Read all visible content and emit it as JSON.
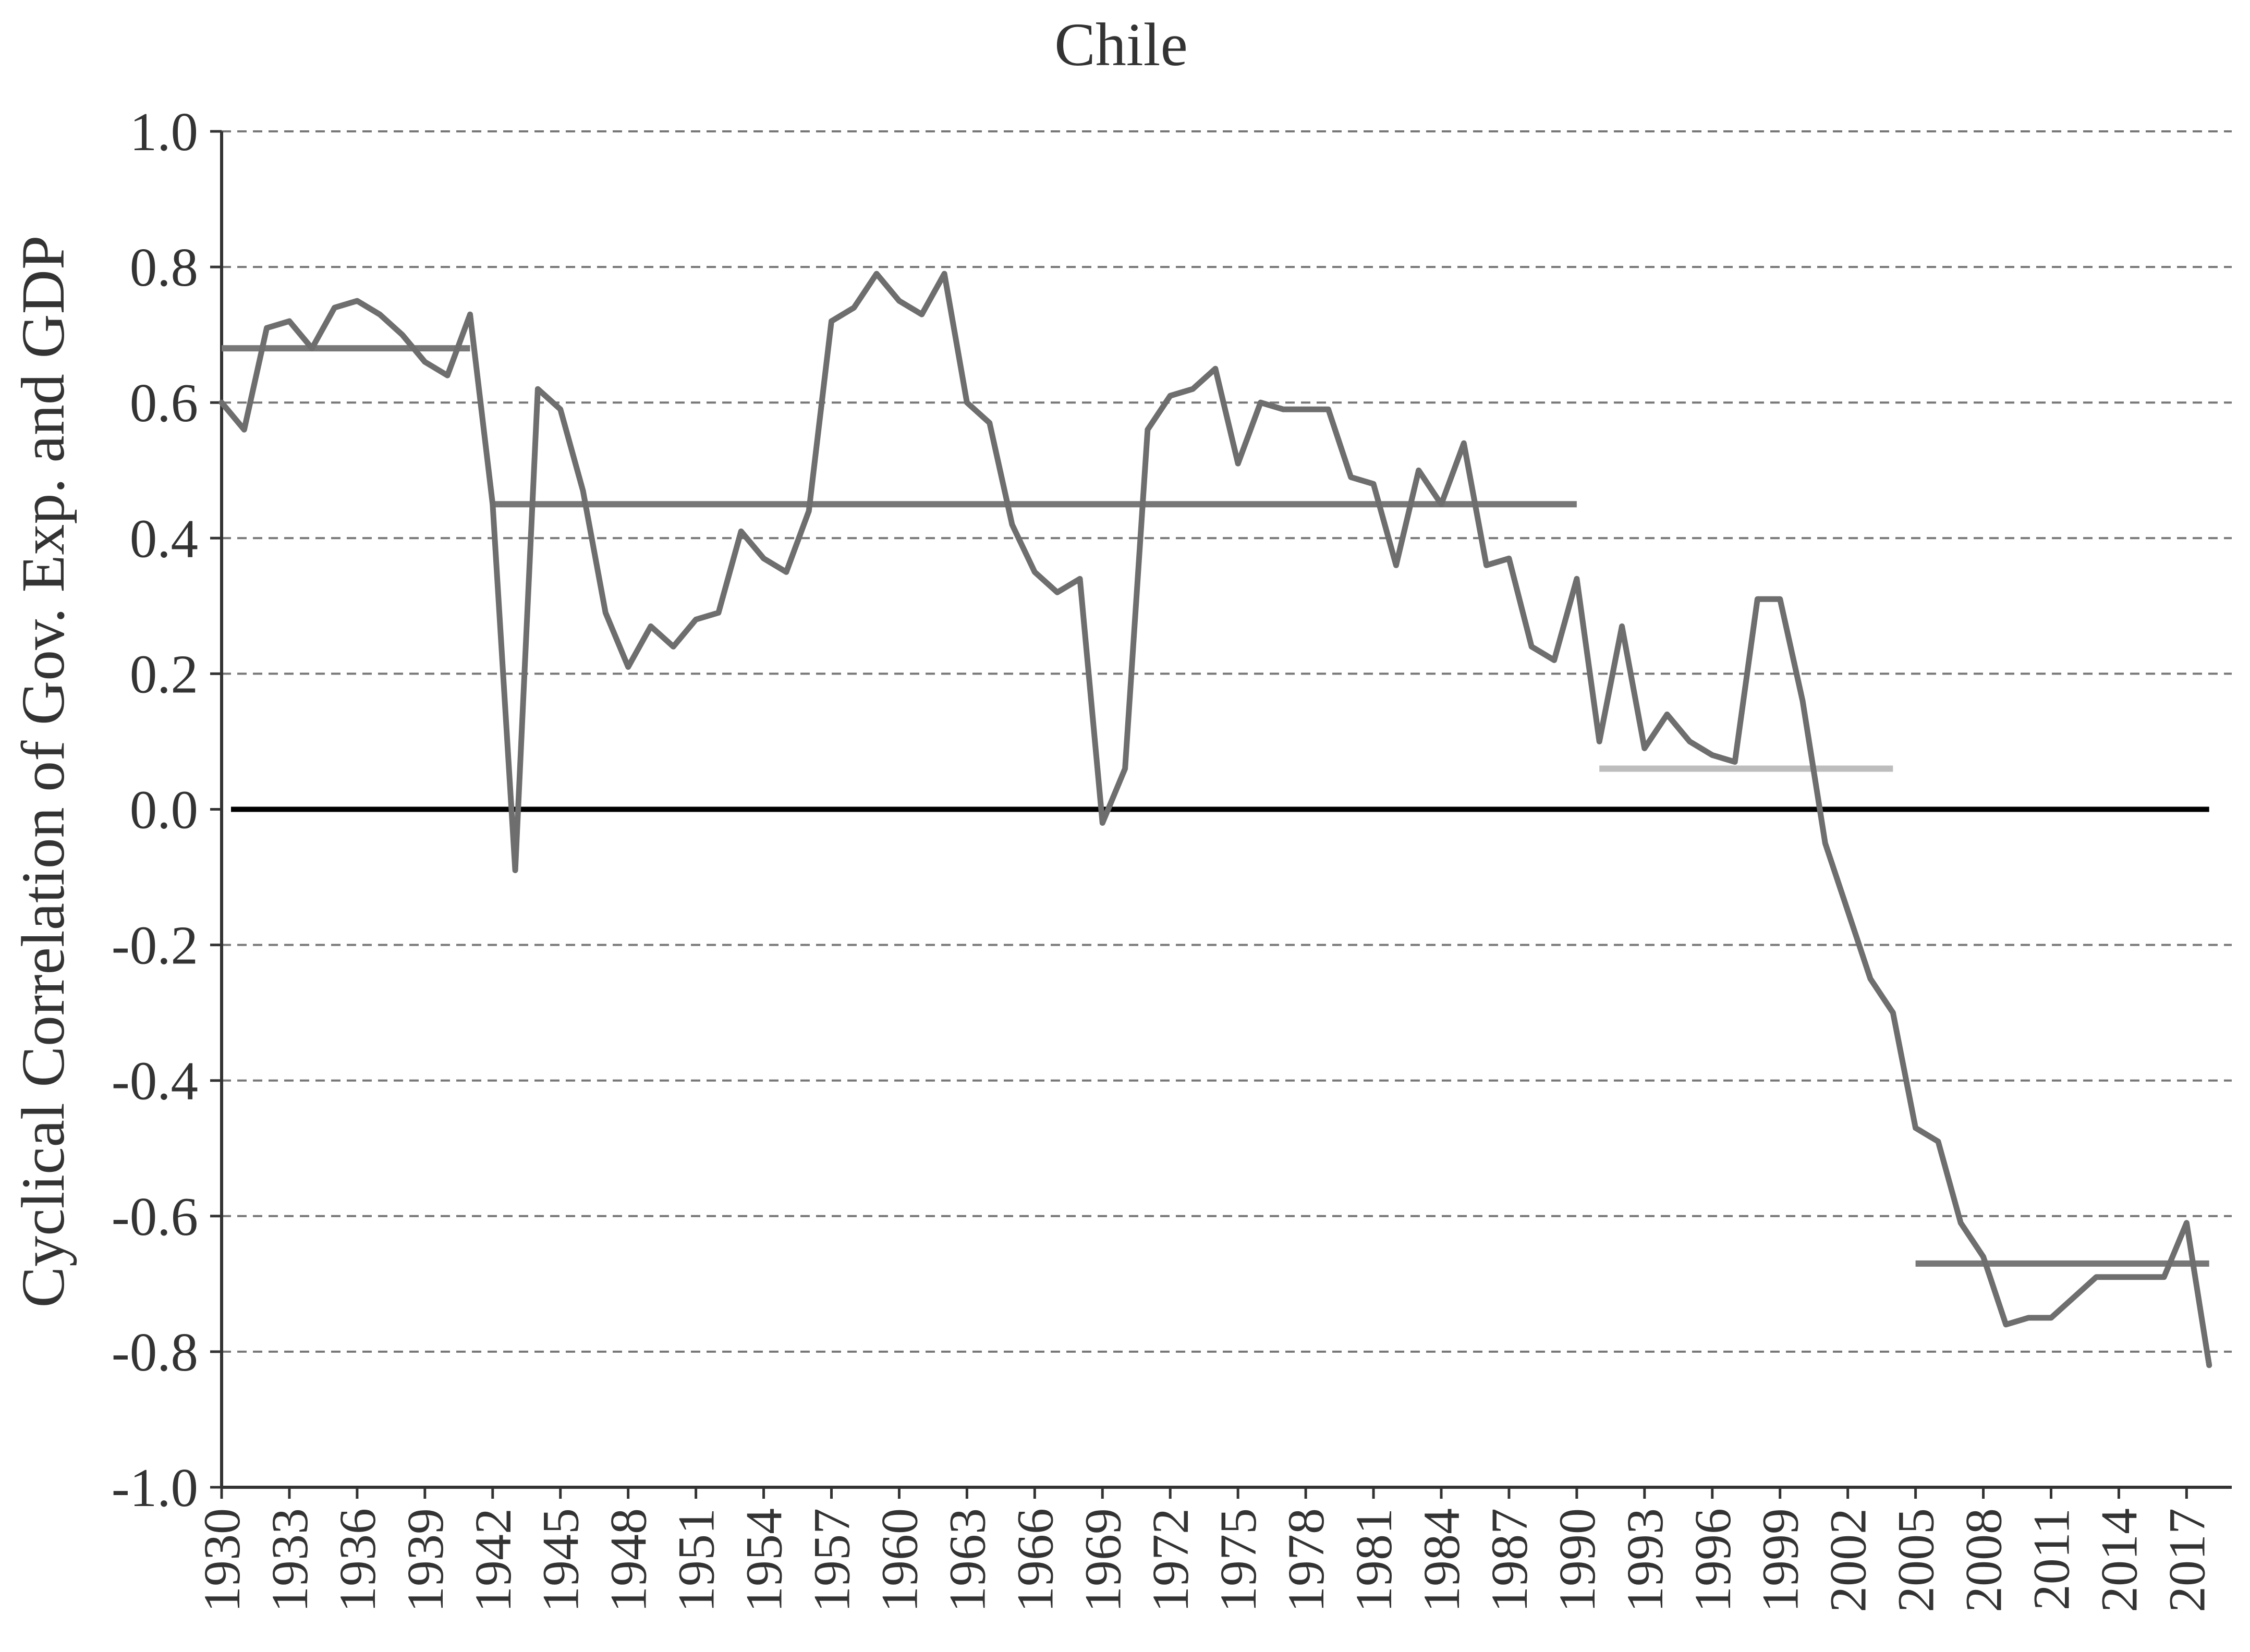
{
  "chart_data": {
    "type": "line",
    "title": "Chile",
    "xlabel": "",
    "ylabel": "Cyclical Correlation of Gov. Exp. and GDP",
    "ylim": [
      -1.0,
      1.0
    ],
    "xlim": [
      1930,
      2019
    ],
    "y_ticks": [
      "1.0",
      "0.8",
      "0.6",
      "0.4",
      "0.2",
      "0.0",
      "-0.2",
      "-0.4",
      "-0.6",
      "-0.8",
      "-1.0"
    ],
    "y_tick_values": [
      1.0,
      0.8,
      0.6,
      0.4,
      0.2,
      0.0,
      -0.2,
      -0.4,
      -0.6,
      -0.8,
      -1.0
    ],
    "x_ticks": [
      "1930",
      "1933",
      "1936",
      "1939",
      "1942",
      "1945",
      "1948",
      "1951",
      "1954",
      "1957",
      "1960",
      "1963",
      "1966",
      "1969",
      "1972",
      "1975",
      "1978",
      "1981",
      "1984",
      "1987",
      "1990",
      "1993",
      "1996",
      "1999",
      "2002",
      "2005",
      "2008",
      "2011",
      "2014",
      "2017"
    ],
    "grid": "horizontal dashed",
    "colors": {
      "series": "#6e6e6e",
      "period_mean": "#777777",
      "period_mean_light": "#bdbdbd",
      "zero_line": "#000000",
      "grid": "#777777",
      "axis": "#333333"
    },
    "series": [
      {
        "x": [
          1930,
          1931,
          1932,
          1933,
          1934,
          1935,
          1936,
          1937,
          1938,
          1939,
          1940,
          1941,
          1942,
          1943,
          1944,
          1945,
          1946,
          1947,
          1948,
          1949,
          1950,
          1951,
          1952,
          1953,
          1954,
          1955,
          1956,
          1957,
          1958,
          1959,
          1960,
          1961,
          1962,
          1963,
          1964,
          1965,
          1966,
          1967,
          1968,
          1969,
          1970,
          1971,
          1972,
          1973,
          1974,
          1975,
          1976,
          1977,
          1978,
          1979,
          1980,
          1981,
          1982,
          1983,
          1984,
          1985,
          1986,
          1987,
          1988,
          1989,
          1990,
          1991,
          1992,
          1993,
          1994,
          1995,
          1996,
          1997,
          1998,
          1999,
          2000,
          2001,
          2002,
          2003,
          2004,
          2005,
          2006,
          2007,
          2008,
          2009,
          2010,
          2011,
          2012,
          2013,
          2014,
          2015,
          2016,
          2017,
          2018
        ],
        "values": [
          0.6,
          0.56,
          0.71,
          0.72,
          0.68,
          0.74,
          0.75,
          0.73,
          0.7,
          0.66,
          0.64,
          0.73,
          0.45,
          -0.09,
          0.62,
          0.59,
          0.47,
          0.29,
          0.21,
          0.27,
          0.24,
          0.28,
          0.29,
          0.41,
          0.37,
          0.35,
          0.44,
          0.72,
          0.74,
          0.79,
          0.75,
          0.73,
          0.79,
          0.6,
          0.57,
          0.42,
          0.35,
          0.32,
          0.34,
          -0.02,
          0.06,
          0.56,
          0.61,
          0.62,
          0.65,
          0.51,
          0.6,
          0.59,
          0.59,
          0.59,
          0.49,
          0.48,
          0.36,
          0.5,
          0.45,
          0.54,
          0.36,
          0.37,
          0.24,
          0.22,
          0.34,
          0.1,
          0.27,
          0.09,
          0.14,
          0.1,
          0.08,
          0.07,
          0.31,
          0.31,
          0.16,
          -0.05,
          -0.15,
          -0.25,
          -0.3,
          -0.47,
          -0.49,
          -0.61,
          -0.66,
          -0.76,
          -0.75,
          -0.75,
          -0.72,
          -0.69,
          -0.69,
          -0.69,
          -0.69,
          -0.61,
          -0.82
        ]
      }
    ],
    "period_means": [
      {
        "x_start": 1930,
        "x_end": 1941,
        "value": 0.68,
        "shade": "dark"
      },
      {
        "x_start": 1942,
        "x_end": 1990,
        "value": 0.45,
        "shade": "dark"
      },
      {
        "x_start": 1991,
        "x_end": 2004,
        "value": 0.06,
        "shade": "light"
      },
      {
        "x_start": 2005,
        "x_end": 2018,
        "value": -0.67,
        "shade": "dark"
      }
    ],
    "reference_line": {
      "value": 0.0,
      "x_start": 1930,
      "x_end": 2018
    }
  }
}
